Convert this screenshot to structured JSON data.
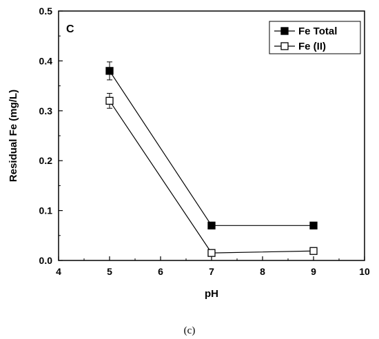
{
  "chart_data": {
    "type": "line",
    "panel_label": "C",
    "caption": "(c)",
    "xlabel": "pH",
    "ylabel": "Residual Fe (mg/L)",
    "xlim": [
      4,
      10
    ],
    "ylim": [
      0.0,
      0.5
    ],
    "xticks": [
      4,
      5,
      6,
      7,
      8,
      9,
      10
    ],
    "xtick_labels": [
      "4",
      "5",
      "6",
      "7",
      "8",
      "9",
      "10"
    ],
    "yticks": [
      0.0,
      0.1,
      0.2,
      0.3,
      0.4,
      0.5
    ],
    "ytick_labels": [
      "0.0",
      "0.1",
      "0.2",
      "0.3",
      "0.4",
      "0.5"
    ],
    "grid": false,
    "legend_position": "top-right",
    "x": [
      5,
      7,
      9
    ],
    "series": [
      {
        "name": "Fe Total",
        "marker": "filled-square",
        "color": "#000000",
        "values": [
          0.38,
          0.07,
          0.07
        ],
        "errors": [
          0.018,
          0.0,
          0.0
        ]
      },
      {
        "name": "Fe (II)",
        "marker": "open-square",
        "color": "#000000",
        "values": [
          0.32,
          0.015,
          0.019
        ],
        "errors": [
          0.015,
          0.005,
          0.005
        ]
      }
    ]
  }
}
